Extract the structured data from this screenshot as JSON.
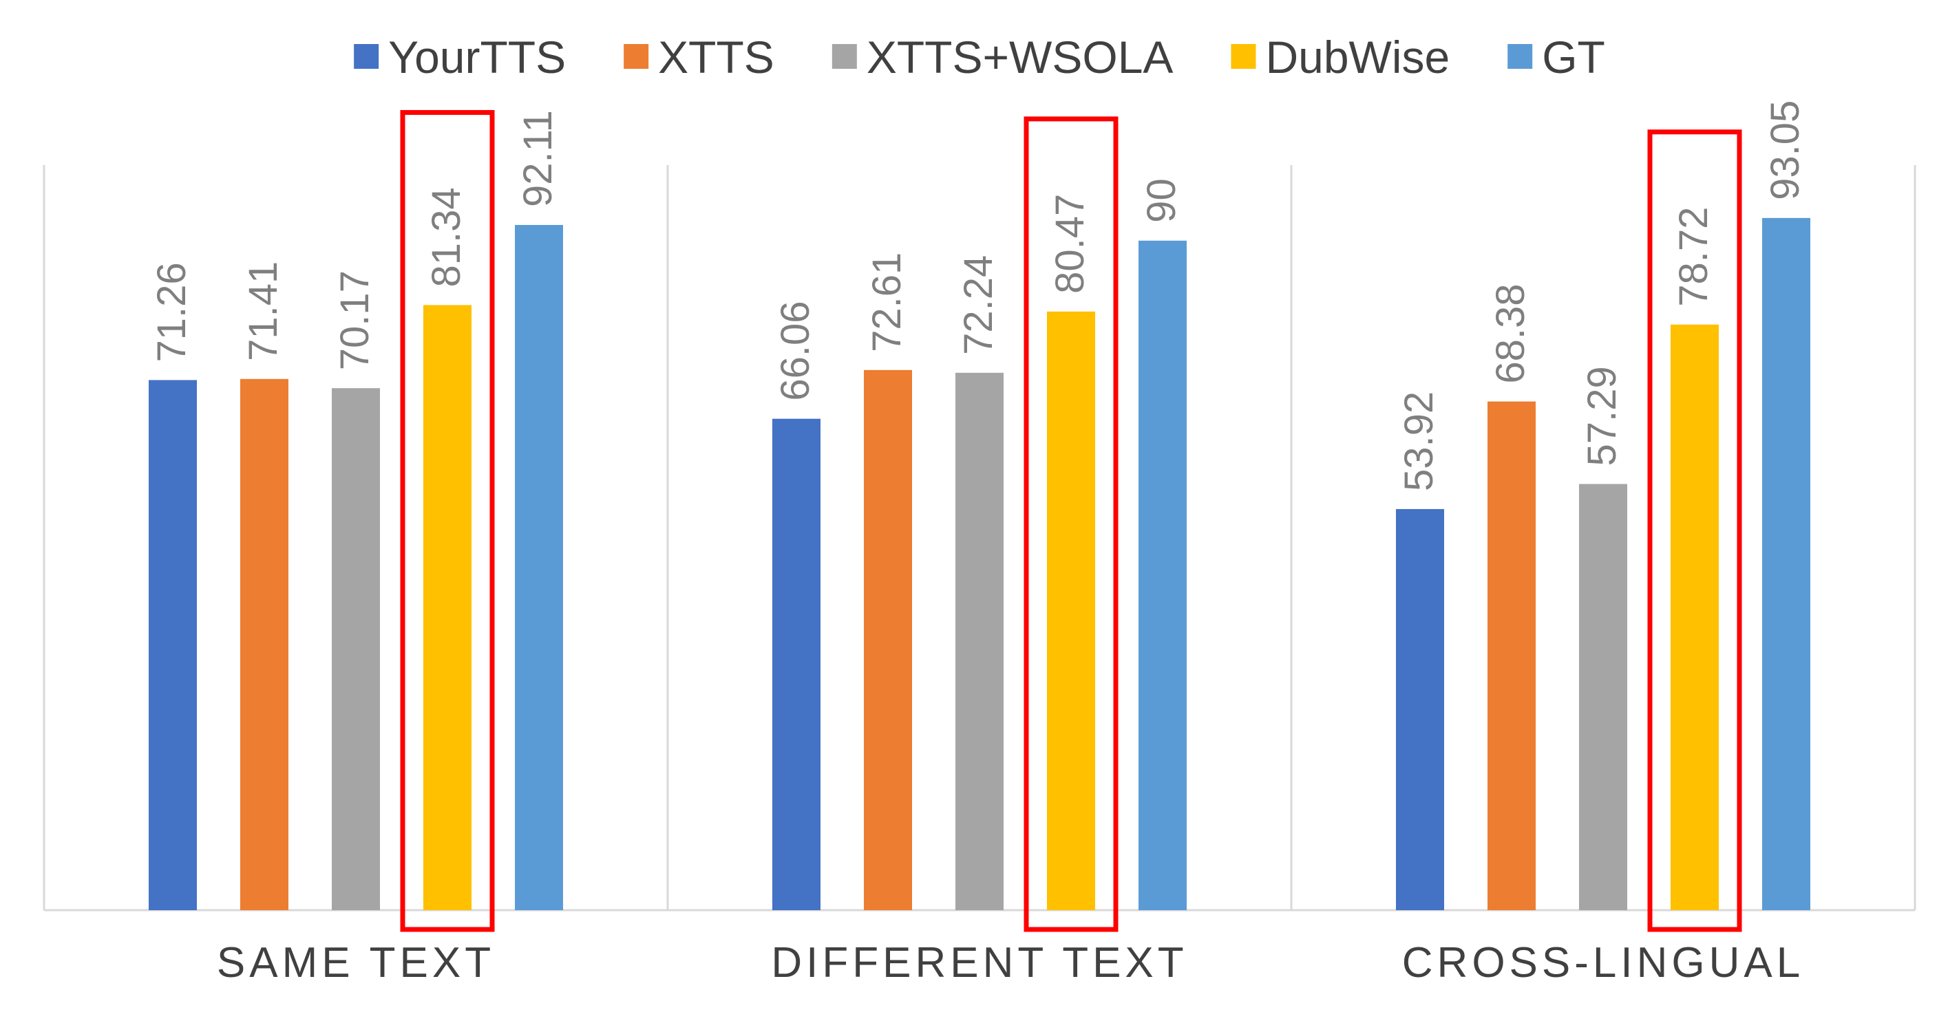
{
  "chart_data": {
    "type": "bar",
    "title": "",
    "xlabel": "",
    "ylabel": "",
    "ylim": [
      0,
      100
    ],
    "grid": false,
    "legend_position": "top-center",
    "categories": [
      "SAME TEXT",
      "DIFFERENT TEXT",
      "CROSS-LINGUAL"
    ],
    "series": [
      {
        "name": "YourTTS",
        "color": "#4472C4",
        "values": [
          71.26,
          66.06,
          53.92
        ],
        "labels": [
          "71.26",
          "66.06",
          "53.92"
        ]
      },
      {
        "name": "XTTS",
        "color": "#ED7D31",
        "values": [
          71.41,
          72.61,
          68.38
        ],
        "labels": [
          "71.41",
          "72.61",
          "68.38"
        ]
      },
      {
        "name": "XTTS+WSOLA",
        "color": "#A5A5A5",
        "values": [
          70.17,
          72.24,
          57.29
        ],
        "labels": [
          "70.17",
          "72.24",
          "57.29"
        ]
      },
      {
        "name": "DubWise",
        "color": "#FFC000",
        "values": [
          81.34,
          80.47,
          78.72
        ],
        "labels": [
          "81.34",
          "80.47",
          "78.72"
        ],
        "highlighted": true,
        "highlight_color": "#FF0000"
      },
      {
        "name": "GT",
        "color": "#5B9BD5",
        "values": [
          92.11,
          90,
          93.05
        ],
        "labels": [
          "92.11",
          "90",
          "93.05"
        ]
      }
    ]
  }
}
